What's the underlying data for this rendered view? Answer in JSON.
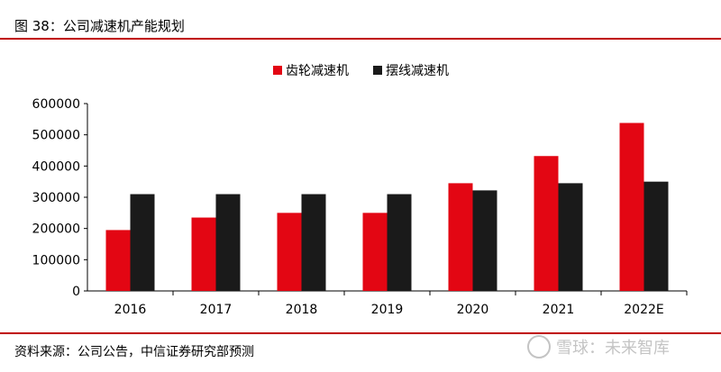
{
  "header": {
    "title": "图 38：公司减速机产能规划"
  },
  "chart_data": {
    "type": "bar",
    "categories": [
      "2016",
      "2017",
      "2018",
      "2019",
      "2020",
      "2021",
      "2022E"
    ],
    "series": [
      {
        "name": "齿轮减速机",
        "color": "#e30613",
        "values": [
          195000,
          235000,
          250000,
          250000,
          345000,
          432000,
          538000
        ]
      },
      {
        "name": "摆线减速机",
        "color": "#1a1a1a",
        "values": [
          310000,
          310000,
          310000,
          310000,
          322000,
          345000,
          350000
        ]
      }
    ],
    "ylim": [
      0,
      600000
    ],
    "yticks": [
      "0",
      "100000",
      "200000",
      "300000",
      "400000",
      "500000",
      "600000"
    ],
    "legend_position": "top-center",
    "grid": false
  },
  "footer": {
    "source": "资料来源：公司公告，中信证券研究部预测",
    "watermark": "雪球：未来智库"
  }
}
